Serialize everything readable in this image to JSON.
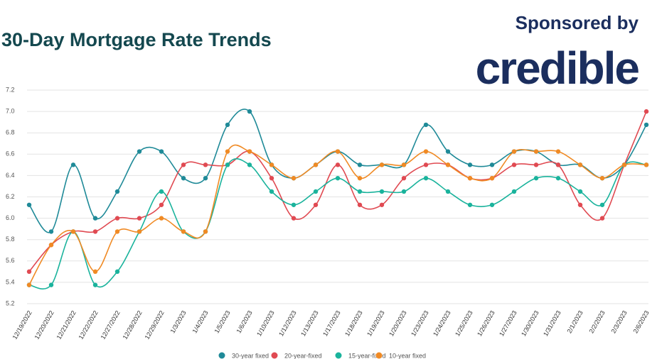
{
  "chart_data": {
    "type": "line",
    "title": "30-Day Mortgage Rate Trends",
    "sponsor": "Sponsored by",
    "sponsor_logo": "credible",
    "categories": [
      "12/19/2022",
      "12/20/2022",
      "12/21/2022",
      "12/22/2022",
      "12/27/2022",
      "12/28/2022",
      "12/29/2022",
      "1/3/2023",
      "1/4/2023",
      "1/5/2023",
      "1/6/2023",
      "1/10/2023",
      "1/12/2023",
      "1/13/2023",
      "1/17/2023",
      "1/18/2023",
      "1/19/2023",
      "1/20/2023",
      "1/23/2023",
      "1/24/2023",
      "1/25/2023",
      "1/26/2023",
      "1/27/2023",
      "1/30/2023",
      "1/31/2023",
      "2/1/2023",
      "2/2/2023",
      "2/3/2023",
      "2/6/2023"
    ],
    "series": [
      {
        "name": "30-year fixed",
        "color": "#1f8a98",
        "values": [
          6.125,
          5.875,
          6.5,
          6.0,
          6.25,
          6.625,
          6.625,
          6.375,
          6.375,
          6.875,
          7.0,
          6.5,
          6.375,
          6.5,
          6.625,
          6.5,
          6.5,
          6.5,
          6.875,
          6.625,
          6.5,
          6.5,
          6.625,
          6.625,
          6.5,
          6.5,
          6.375,
          6.5,
          6.875
        ]
      },
      {
        "name": "20-year-fixed",
        "color": "#e04a52",
        "values": [
          5.5,
          5.75,
          5.875,
          5.875,
          6.0,
          6.0,
          6.125,
          6.5,
          6.5,
          6.5,
          6.625,
          6.375,
          6.0,
          6.125,
          6.5,
          6.125,
          6.125,
          6.375,
          6.5,
          6.5,
          6.375,
          6.375,
          6.5,
          6.5,
          6.5,
          6.125,
          6.0,
          6.5,
          7.0
        ]
      },
      {
        "name": "15-year-fixed",
        "color": "#1ab39c",
        "values": [
          5.375,
          5.375,
          5.875,
          5.375,
          5.5,
          5.875,
          6.25,
          5.875,
          5.875,
          6.5,
          6.5,
          6.25,
          6.125,
          6.25,
          6.375,
          6.25,
          6.25,
          6.25,
          6.375,
          6.25,
          6.125,
          6.125,
          6.25,
          6.375,
          6.375,
          6.25,
          6.125,
          6.5,
          6.5
        ]
      },
      {
        "name": "10-year fixed",
        "color": "#f08a24",
        "values": [
          5.375,
          5.75,
          5.875,
          5.5,
          5.875,
          5.875,
          6.0,
          5.875,
          5.875,
          6.625,
          6.625,
          6.5,
          6.375,
          6.5,
          6.625,
          6.375,
          6.5,
          6.5,
          6.625,
          6.5,
          6.375,
          6.375,
          6.625,
          6.625,
          6.625,
          6.5,
          6.375,
          6.5,
          6.5
        ]
      }
    ],
    "ylim": [
      5.2,
      7.2
    ],
    "yticks": [
      5.2,
      5.4,
      5.6,
      5.8,
      {
        "value": 6,
        "label": "6.0"
      },
      6.2,
      6.4,
      6.6,
      6.8,
      {
        "value": 7,
        "label": "7.0"
      },
      7.2
    ],
    "grid": true,
    "legend": "bottom"
  }
}
